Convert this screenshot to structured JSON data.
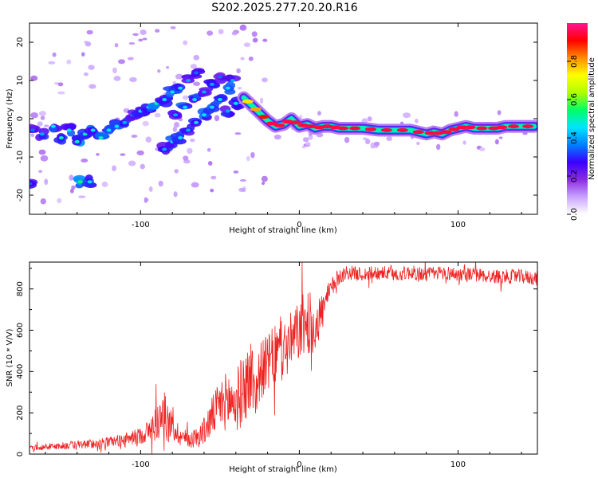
{
  "title": "S202.2025.277.20.20.R16",
  "colors": {
    "snr_line": "#ee2222",
    "axis": "#000000"
  },
  "chart_data": [
    {
      "type": "heatmap",
      "name": "spectrogram",
      "xlabel": "Height of straight line (km)",
      "ylabel": "Frequency (Hz)",
      "xlim": [
        -170,
        150
      ],
      "ylim": [
        -25,
        25
      ],
      "x_ticks": [
        -100,
        0,
        100
      ],
      "y_ticks": [
        -20,
        -10,
        0,
        10,
        20
      ],
      "colorbar": {
        "label": "Normalized spectral amplitude",
        "range": [
          0.0,
          1.0
        ],
        "ticks": [
          "0.0",
          "0.2",
          "0.4",
          "0.6",
          "0.8"
        ],
        "colors": [
          "#ffffff",
          "#c9a3ff",
          "#8a2be2",
          "#3a00ff",
          "#0080ff",
          "#00e5ff",
          "#00ff66",
          "#b0ff00",
          "#ffff00",
          "#ff8c00",
          "#ff0000",
          "#ff1493"
        ]
      },
      "ridge": [
        {
          "x": -35,
          "y": 5.5,
          "a": 0.75
        },
        {
          "x": -30,
          "y": 3.5,
          "a": 0.8
        },
        {
          "x": -25,
          "y": 1.5,
          "a": 0.9
        },
        {
          "x": -20,
          "y": -0.5,
          "a": 0.95
        },
        {
          "x": -15,
          "y": -2.0,
          "a": 0.95
        },
        {
          "x": -10,
          "y": -1.5,
          "a": 0.95
        },
        {
          "x": -5,
          "y": 0.0,
          "a": 0.95
        },
        {
          "x": 0,
          "y": -2.0,
          "a": 0.95
        },
        {
          "x": 5,
          "y": -1.5,
          "a": 0.95
        },
        {
          "x": 10,
          "y": -2.5,
          "a": 0.95
        },
        {
          "x": 15,
          "y": -2.0,
          "a": 0.95
        },
        {
          "x": 20,
          "y": -2.0,
          "a": 0.95
        },
        {
          "x": 25,
          "y": -2.5,
          "a": 0.95
        },
        {
          "x": 30,
          "y": -2.5,
          "a": 0.95
        },
        {
          "x": 40,
          "y": -2.5,
          "a": 0.95
        },
        {
          "x": 50,
          "y": -3.0,
          "a": 0.95
        },
        {
          "x": 60,
          "y": -3.0,
          "a": 0.95
        },
        {
          "x": 70,
          "y": -3.0,
          "a": 0.95
        },
        {
          "x": 80,
          "y": -4.0,
          "a": 0.95
        },
        {
          "x": 85,
          "y": -3.5,
          "a": 0.95
        },
        {
          "x": 90,
          "y": -4.0,
          "a": 0.95
        },
        {
          "x": 95,
          "y": -3.0,
          "a": 0.95
        },
        {
          "x": 100,
          "y": -2.5,
          "a": 0.95
        },
        {
          "x": 105,
          "y": -2.0,
          "a": 0.95
        },
        {
          "x": 110,
          "y": -2.5,
          "a": 0.95
        },
        {
          "x": 120,
          "y": -2.5,
          "a": 0.95
        },
        {
          "x": 125,
          "y": -2.5,
          "a": 0.95
        },
        {
          "x": 130,
          "y": -2.0,
          "a": 0.95
        },
        {
          "x": 140,
          "y": -2.0,
          "a": 0.95
        },
        {
          "x": 148,
          "y": -2.0,
          "a": 0.95
        }
      ],
      "blobs": [
        {
          "x": -168,
          "y": -3,
          "a": 0.35
        },
        {
          "x": -162,
          "y": -4,
          "a": 0.4
        },
        {
          "x": -155,
          "y": -2,
          "a": 0.45
        },
        {
          "x": -150,
          "y": -5,
          "a": 0.5
        },
        {
          "x": -145,
          "y": -3,
          "a": 0.45
        },
        {
          "x": -140,
          "y": -6,
          "a": 0.5
        },
        {
          "x": -135,
          "y": -4,
          "a": 0.5
        },
        {
          "x": -130,
          "y": -3,
          "a": 0.45
        },
        {
          "x": -125,
          "y": -5,
          "a": 0.5
        },
        {
          "x": -120,
          "y": -3,
          "a": 0.45
        },
        {
          "x": -115,
          "y": -2,
          "a": 0.45
        },
        {
          "x": -110,
          "y": -1,
          "a": 0.4
        },
        {
          "x": -170,
          "y": -17,
          "a": 0.35
        },
        {
          "x": -138,
          "y": -16.5,
          "a": 0.55
        },
        {
          "x": -132,
          "y": -16.5,
          "a": 0.45
        },
        {
          "x": -105,
          "y": 1,
          "a": 0.4
        },
        {
          "x": -100,
          "y": 2,
          "a": 0.45
        },
        {
          "x": -95,
          "y": 3,
          "a": 0.45
        },
        {
          "x": -90,
          "y": 4,
          "a": 0.5
        },
        {
          "x": -85,
          "y": 5,
          "a": 0.45
        },
        {
          "x": -80,
          "y": 7,
          "a": 0.45
        },
        {
          "x": -75,
          "y": 8,
          "a": 0.45
        },
        {
          "x": -70,
          "y": 10,
          "a": 0.4
        },
        {
          "x": -65,
          "y": 12,
          "a": 0.35
        },
        {
          "x": -85,
          "y": -8,
          "a": 0.4
        },
        {
          "x": -80,
          "y": -6,
          "a": 0.45
        },
        {
          "x": -75,
          "y": -5,
          "a": 0.45
        },
        {
          "x": -70,
          "y": -3,
          "a": 0.4
        },
        {
          "x": -65,
          "y": -1,
          "a": 0.45
        },
        {
          "x": -60,
          "y": 1,
          "a": 0.45
        },
        {
          "x": -55,
          "y": 3,
          "a": 0.45
        },
        {
          "x": -50,
          "y": 5,
          "a": 0.45
        },
        {
          "x": -45,
          "y": 8,
          "a": 0.45
        },
        {
          "x": -42,
          "y": 10,
          "a": 0.4
        },
        {
          "x": -78,
          "y": 1,
          "a": 0.4
        },
        {
          "x": -72,
          "y": 3,
          "a": 0.45
        },
        {
          "x": -66,
          "y": 5,
          "a": 0.45
        },
        {
          "x": -60,
          "y": 7,
          "a": 0.4
        },
        {
          "x": -55,
          "y": 9,
          "a": 0.4
        },
        {
          "x": -50,
          "y": 11,
          "a": 0.35
        },
        {
          "x": -45,
          "y": 2,
          "a": 0.4
        },
        {
          "x": -40,
          "y": 4,
          "a": 0.45
        }
      ]
    },
    {
      "type": "line",
      "name": "snr",
      "xlabel": "Height of straight line (km)",
      "ylabel": "SNR (10 * V/V)",
      "xlim": [
        -170,
        150
      ],
      "ylim": [
        0,
        930
      ],
      "x_ticks": [
        -100,
        0,
        100
      ],
      "y_ticks": [
        0,
        200,
        400,
        600,
        800
      ],
      "series": [
        {
          "name": "SNR",
          "x": [
            -170,
            -160,
            -150,
            -140,
            -130,
            -120,
            -110,
            -100,
            -95,
            -90,
            -85,
            -80,
            -75,
            -70,
            -65,
            -60,
            -55,
            -50,
            -45,
            -40,
            -35,
            -30,
            -27,
            -25,
            -20,
            -15,
            -10,
            -5,
            0,
            5,
            10,
            15,
            20,
            25,
            30,
            40,
            50,
            60,
            70,
            80,
            90,
            100,
            110,
            120,
            130,
            140,
            150
          ],
          "values": [
            30,
            35,
            40,
            45,
            50,
            60,
            70,
            90,
            110,
            150,
            200,
            130,
            90,
            70,
            80,
            110,
            180,
            240,
            260,
            250,
            320,
            380,
            300,
            400,
            440,
            480,
            500,
            540,
            600,
            640,
            620,
            700,
            800,
            860,
            880,
            870,
            880,
            870,
            880,
            870,
            880,
            870,
            870,
            860,
            860,
            860,
            850
          ],
          "noise": [
            12,
            15,
            18,
            20,
            22,
            25,
            30,
            40,
            60,
            90,
            100,
            70,
            50,
            40,
            50,
            70,
            100,
            120,
            150,
            160,
            170,
            200,
            120,
            140,
            140,
            150,
            150,
            150,
            150,
            160,
            140,
            90,
            50,
            40,
            35,
            35,
            35,
            35,
            35,
            35,
            35,
            35,
            35,
            35,
            35,
            35,
            35
          ]
        }
      ]
    }
  ]
}
